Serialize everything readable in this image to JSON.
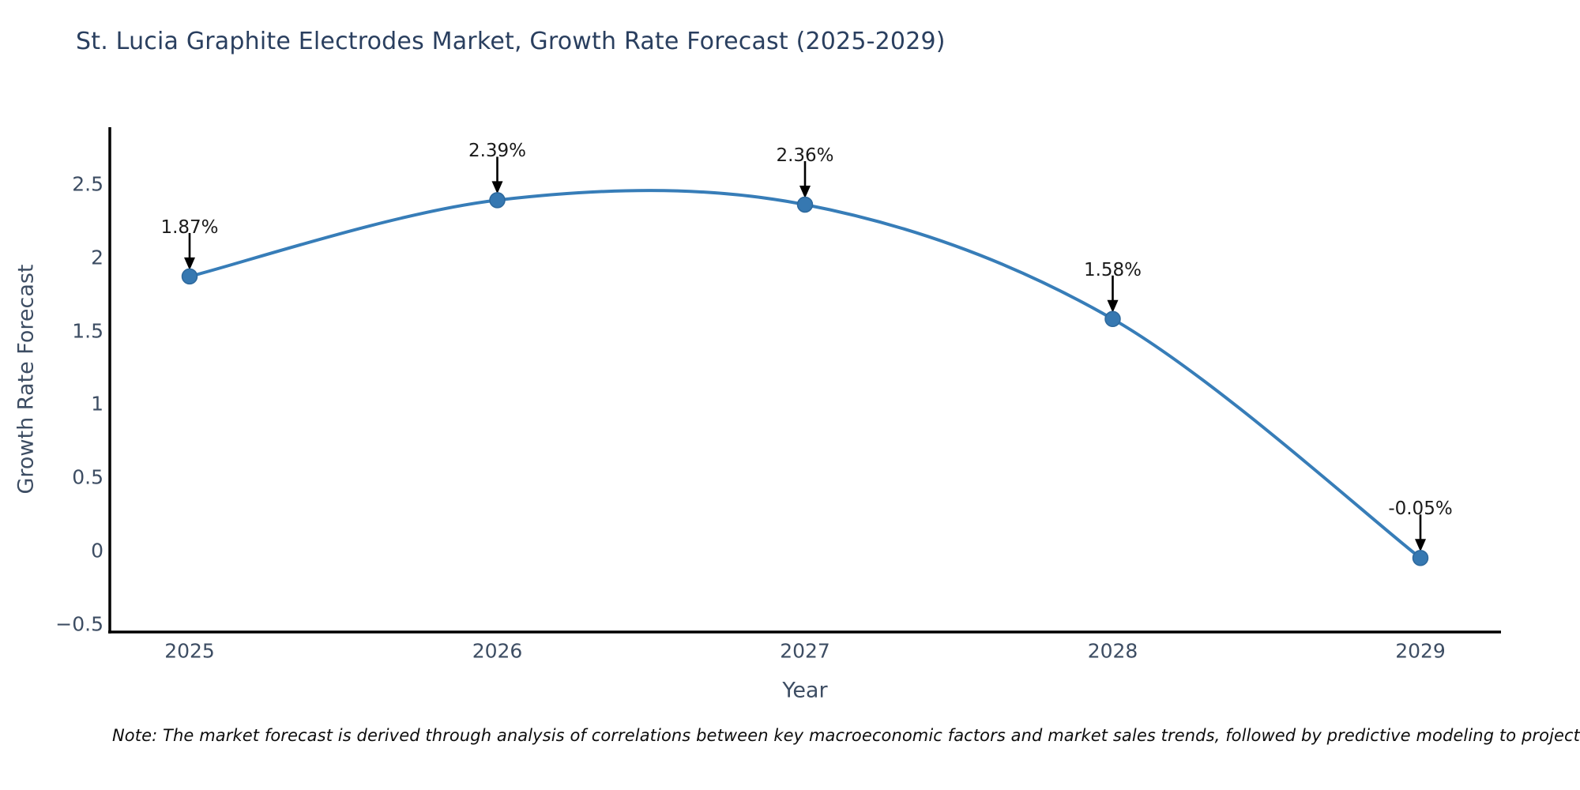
{
  "page": {
    "background": "#ffffff"
  },
  "chart_data": {
    "type": "line",
    "line_shape": "spline",
    "title": "St. Lucia Graphite Electrodes Market, Growth Rate Forecast (2025-2029)",
    "xlabel": "Year",
    "ylabel": "Growth Rate Forecast",
    "categories": [
      "2025",
      "2026",
      "2027",
      "2028",
      "2029"
    ],
    "series": [
      {
        "name": "Growth Rate Forecast",
        "values": [
          1.87,
          2.39,
          2.36,
          1.58,
          -0.05
        ]
      }
    ],
    "point_labels": [
      "1.87%",
      "2.39%",
      "2.36%",
      "1.58%",
      "-0.05%"
    ],
    "ytick_values": [
      -0.5,
      0,
      0.5,
      1,
      1.5,
      2,
      2.5
    ],
    "ytick_labels": [
      "−0.5",
      "0",
      "0.5",
      "1",
      "1.5",
      "2",
      "2.5"
    ],
    "ylim": [
      -0.56,
      2.89
    ],
    "grid": false,
    "legend": "none",
    "markers": true,
    "annotations_have_arrows": true,
    "colors": {
      "line": "#377db8",
      "marker_fill": "#3678b1",
      "marker_edge": "#2d689c",
      "axis_line": "#000000",
      "title_text": "#2a3f5f",
      "tick_text": "#3d4d63",
      "annotation_text": "#1a1a1a",
      "arrow": "#000000",
      "background": "#ffffff"
    },
    "note": "Note: The market forecast is derived through analysis of correlations between key macroeconomic factors and market sales trends, followed by predictive modeling to project future sa"
  }
}
